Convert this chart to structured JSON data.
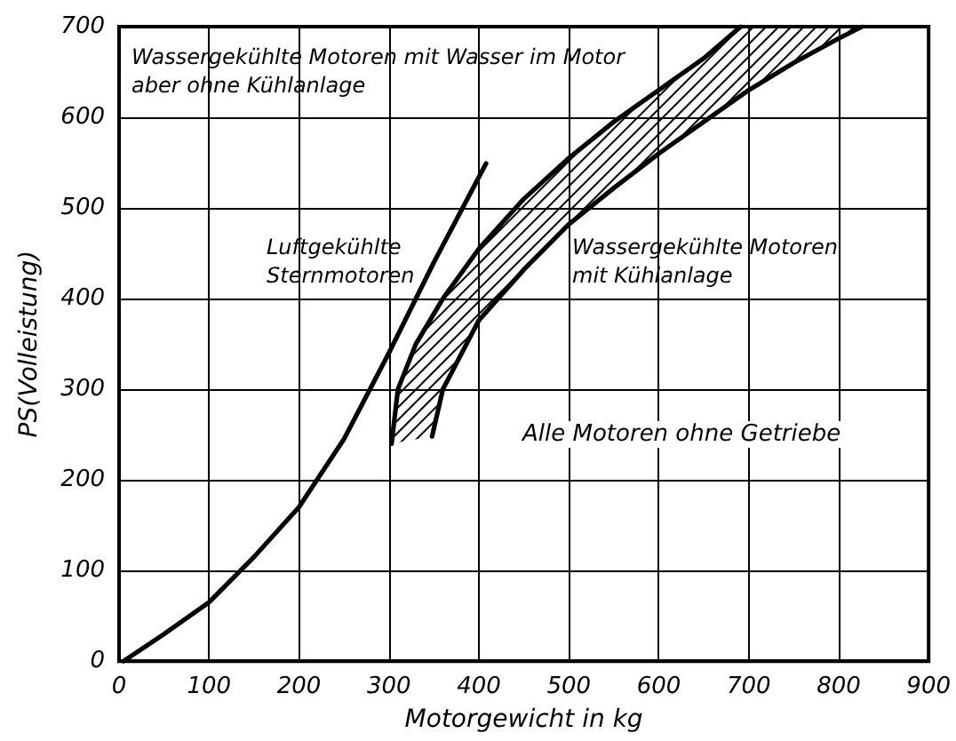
{
  "chart_data": {
    "type": "line",
    "xlabel": "Motorgewicht in kg",
    "ylabel": "PS(Volleistung)",
    "xlim": [
      0,
      900
    ],
    "xticks": [
      0,
      100,
      200,
      300,
      400,
      500,
      600,
      700,
      800,
      900
    ],
    "ylim": [
      0,
      700
    ],
    "yticks": [
      0,
      100,
      200,
      300,
      400,
      500,
      600,
      700
    ],
    "grid": true,
    "legend": false,
    "marker": "none",
    "line_style": "solid",
    "series": [
      {
        "name": "Luftgekühlte Sternmotoren",
        "color": "#000000",
        "x": [
          5,
          50,
          100,
          150,
          200,
          250,
          300,
          350,
          408
        ],
        "values": [
          0,
          30,
          65,
          115,
          170,
          245,
          340,
          440,
          549
        ]
      },
      {
        "name": "Wassergekühlte Motoren mit Wasser im Motor aber ohne Kühlanlage",
        "color": "#000000",
        "x": [
          303,
          310,
          330,
          360,
          400,
          450,
          500,
          550,
          600,
          650,
          691
        ],
        "values": [
          240,
          300,
          350,
          400,
          455,
          510,
          555,
          595,
          630,
          665,
          700
        ]
      },
      {
        "name": "Wassergekühlte Motoren mit Kühlanlage",
        "color": "#000000",
        "x": [
          348,
          360,
          400,
          450,
          500,
          550,
          600,
          650,
          700,
          750,
          800,
          826
        ],
        "values": [
          248,
          300,
          376,
          432,
          482,
          522,
          560,
          595,
          630,
          660,
          687,
          700
        ]
      }
    ],
    "annotations": [
      "Alle Motoren ohne Getriebe"
    ]
  }
}
